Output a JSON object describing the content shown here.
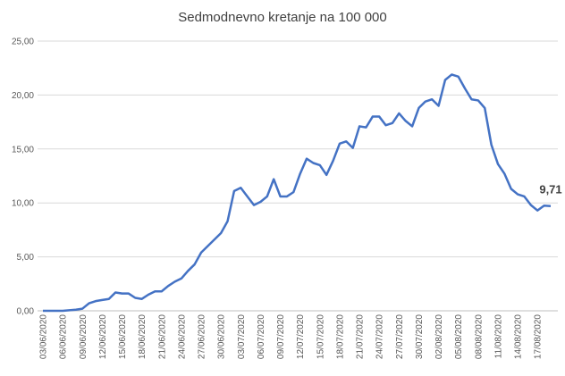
{
  "chart_data": {
    "type": "line",
    "title": "Sedmodnevno kretanje na 100 000",
    "categories": [
      "03/06/2020",
      null,
      null,
      "06/06/2020",
      null,
      null,
      "09/06/2020",
      null,
      null,
      "12/06/2020",
      null,
      null,
      "15/06/2020",
      null,
      null,
      "18/06/2020",
      null,
      null,
      "21/06/2020",
      null,
      null,
      "24/06/2020",
      null,
      null,
      "27/06/2020",
      null,
      null,
      "30/06/2020",
      null,
      null,
      "03/07/2020",
      null,
      null,
      "06/07/2020",
      null,
      null,
      "09/07/2020",
      null,
      null,
      "12/07/2020",
      null,
      null,
      "15/07/2020",
      null,
      null,
      "18/07/2020",
      null,
      null,
      "21/07/2020",
      null,
      null,
      "24/07/2020",
      null,
      null,
      "27/07/2020",
      null,
      null,
      "30/07/2020",
      null,
      null,
      "02/08/2020",
      null,
      null,
      "05/08/2020",
      null,
      null,
      "08/08/2020",
      null,
      null,
      "11/08/2020",
      null,
      null,
      "14/08/2020",
      null,
      null,
      "17/08/2020",
      null,
      null
    ],
    "series": [
      {
        "color": "#4472c4",
        "values": [
          0,
          0,
          0,
          0,
          0.05,
          0.1,
          0.2,
          0.7,
          0.9,
          1.0,
          1.1,
          1.7,
          1.6,
          1.6,
          1.2,
          1.1,
          1.5,
          1.8,
          1.8,
          2.3,
          2.7,
          3.0,
          3.7,
          4.3,
          5.4,
          6.0,
          6.6,
          7.2,
          8.3,
          11.1,
          11.4,
          10.6,
          9.8,
          10.1,
          10.6,
          12.2,
          10.6,
          10.6,
          11.0,
          12.7,
          14.1,
          13.7,
          13.5,
          12.6,
          13.9,
          15.5,
          15.7,
          15.1,
          17.1,
          17.0,
          18.0,
          18.0,
          17.2,
          17.4,
          18.3,
          17.6,
          17.1,
          18.8,
          19.4,
          19.6,
          19.0,
          21.4,
          21.9,
          21.7,
          20.6,
          19.6,
          19.5,
          18.8,
          15.4,
          13.6,
          12.7,
          11.3,
          10.8,
          10.6,
          9.8,
          9.3,
          9.75,
          9.71
        ],
        "value_labels": [
          null,
          null,
          null,
          null,
          null,
          null,
          null,
          null,
          null,
          null,
          null,
          null,
          null,
          null,
          null,
          null,
          null,
          null,
          null,
          null,
          null,
          null,
          null,
          null,
          null,
          null,
          null,
          null,
          null,
          null,
          null,
          null,
          null,
          null,
          null,
          null,
          null,
          null,
          null,
          null,
          null,
          null,
          null,
          null,
          null,
          null,
          null,
          null,
          null,
          null,
          null,
          null,
          null,
          null,
          null,
          null,
          null,
          null,
          null,
          null,
          null,
          null,
          null,
          null,
          null,
          null,
          null,
          null,
          null,
          null,
          null,
          null,
          null,
          null,
          null,
          null,
          null,
          "9,71"
        ]
      }
    ],
    "ylim": [
      0,
      25
    ],
    "yticks": [
      {
        "value": 0,
        "label": "0,00"
      },
      {
        "value": 5,
        "label": "5,00"
      },
      {
        "value": 10,
        "label": "10,00"
      },
      {
        "value": 15,
        "label": "15,00"
      },
      {
        "value": 20,
        "label": "20,00"
      },
      {
        "value": 25,
        "label": "25,00"
      }
    ],
    "grid": true
  }
}
